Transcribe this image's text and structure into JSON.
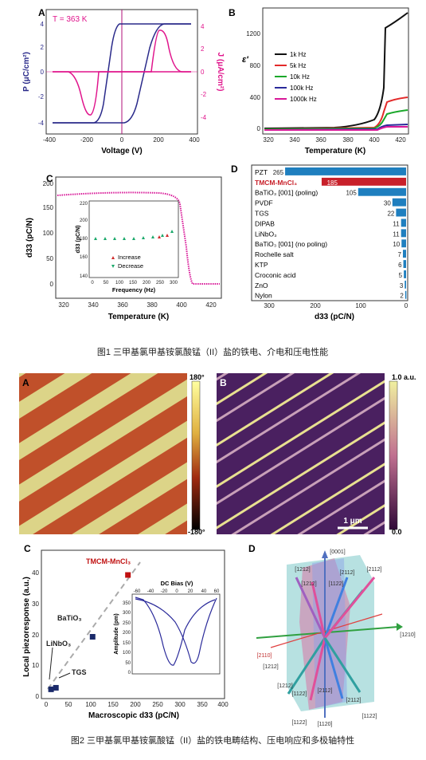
{
  "fig1": {
    "caption": "图1   三甲基氯甲基铵氯酸锰（II）盐的铁电、介电和压电性能",
    "A": {
      "label": "A",
      "annotation": "T = 363 K",
      "xlabel": "Voltage (V)",
      "ylabel_left": "P (μC/cm²)",
      "ylabel_right": "J (μA/cm²)",
      "xticks": [
        "-400",
        "-200",
        "0",
        "200",
        "400"
      ],
      "yticks_left": [
        "-4",
        "-2",
        "0",
        "2",
        "4"
      ],
      "yticks_right": [
        "-4",
        "-2",
        "0",
        "2",
        "4"
      ],
      "colors": {
        "P": "#2a2a8a",
        "J": "#e0148c"
      }
    },
    "B": {
      "label": "B",
      "xlabel": "Temperature (K)",
      "ylabel": "ε'",
      "xticks": [
        "320",
        "340",
        "360",
        "380",
        "400",
        "420"
      ],
      "yticks": [
        "0",
        "400",
        "800",
        "1200"
      ],
      "legend": [
        {
          "name": "1k Hz",
          "color": "#111111"
        },
        {
          "name": "5k Hz",
          "color": "#e32a2a"
        },
        {
          "name": "10k Hz",
          "color": "#1aa82a"
        },
        {
          "name": "100k Hz",
          "color": "#2a2a9a"
        },
        {
          "name": "1000k Hz",
          "color": "#d81898"
        }
      ]
    },
    "C": {
      "label": "C",
      "xlabel": "Temperature (K)",
      "ylabel": "d33 (pC/N)",
      "xticks": [
        "320",
        "340",
        "360",
        "380",
        "400",
        "420"
      ],
      "yticks": [
        "0",
        "50",
        "100",
        "150",
        "200"
      ],
      "inset": {
        "xlabel": "Frequency (Hz)",
        "ylabel": "d33 (pC/N)",
        "xticks": [
          "0",
          "50",
          "100",
          "150",
          "200",
          "250",
          "300"
        ],
        "yticks": [
          "140",
          "160",
          "180",
          "200",
          "220"
        ],
        "legend_increase": "Increase",
        "legend_decrease": "Decrease"
      }
    },
    "D": {
      "label": "D",
      "xlabel": "d33 (pC/N)",
      "xticks": [
        "300",
        "200",
        "100",
        "0"
      ],
      "bars": [
        {
          "name": "PZT",
          "value": 265,
          "value_label": "265"
        },
        {
          "name": "TMCM-MnCl₃",
          "value": 185,
          "value_label": "185"
        },
        {
          "name": "BaTiO₃ [001] (poling)",
          "value": 105,
          "value_label": "105"
        },
        {
          "name": "PVDF",
          "value": 30,
          "value_label": "30"
        },
        {
          "name": "TGS",
          "value": 22,
          "value_label": "22"
        },
        {
          "name": "DIPAB",
          "value": 11,
          "value_label": "11"
        },
        {
          "name": "LiNbO₃",
          "value": 11,
          "value_label": "11"
        },
        {
          "name": "BaTiO₃ [001] (no poling)",
          "value": 10,
          "value_label": "10"
        },
        {
          "name": "Rochelle salt",
          "value": 7,
          "value_label": "7"
        },
        {
          "name": "KTP",
          "value": 6,
          "value_label": "6"
        },
        {
          "name": "Croconic acid",
          "value": 5,
          "value_label": "5"
        },
        {
          "name": "ZnO",
          "value": 3,
          "value_label": "3"
        },
        {
          "name": "Nylon",
          "value": 2,
          "value_label": "2"
        }
      ],
      "colors": {
        "bar": "#1f7fbf",
        "highlight": "#c8202a"
      }
    }
  },
  "fig2": {
    "caption": "图2   三甲基氯甲基铵氯酸锰（II）盐的铁电畴结构、压电响应和多极轴特性",
    "A": {
      "label": "A",
      "cbar_top": "180°",
      "cbar_bottom": "-180°"
    },
    "B": {
      "label": "B",
      "cbar_top": "1.0 a.u.",
      "cbar_bottom": "0.0",
      "scalebar": "1 μm"
    },
    "C": {
      "label": "C",
      "xlabel": "Macroscopic d33 (pC/N)",
      "ylabel": "Local piezoresponse (a.u.)",
      "xticks": [
        "0",
        "50",
        "100",
        "150",
        "200",
        "250",
        "300",
        "350",
        "400"
      ],
      "yticks": [
        "0",
        "10",
        "20",
        "30",
        "40"
      ],
      "points": [
        {
          "name": "TMCM-MnCl₃",
          "x": 185,
          "y": 40
        },
        {
          "name": "BaTiO₃",
          "x": 105,
          "y": 20
        },
        {
          "name": "LiNbO₃",
          "x": 11,
          "y": 3
        },
        {
          "name": "TGS",
          "x": 22,
          "y": 3.5
        }
      ],
      "inset": {
        "xlabel": "DC Bias (V)",
        "ylabel": "Amplitude (pm)",
        "xticks": [
          "-60",
          "-40",
          "-20",
          "0",
          "20",
          "40",
          "60"
        ],
        "yticks": [
          "0",
          "50",
          "100",
          "150",
          "200",
          "250",
          "300",
          "350"
        ]
      }
    },
    "D": {
      "label": "D",
      "axes": [
        "[0001]",
        "[1210]",
        "[2110]",
        "[1120]"
      ],
      "vectors": [
        "[1212]",
        "[1212]",
        "[2112]",
        "[1122]",
        "[2112]",
        "[1212]",
        "[1212]",
        "[1122]",
        "[2112]",
        "[2112]",
        "[1122]",
        "[1122]"
      ]
    }
  },
  "chart_data": [
    {
      "type": "line",
      "title": "",
      "xlabel": "Voltage (V)",
      "ylabel": "P (μC/cm²)",
      "xlim": [
        -420,
        420
      ],
      "ylim": [
        -4.4,
        4.4
      ],
      "series": [
        {
          "name": "P",
          "x": [
            -400,
            -260,
            -220,
            -200,
            -170,
            -140,
            -100,
            0,
            200,
            400
          ],
          "y": [
            -4,
            -4,
            -3.6,
            -1.5,
            2,
            3.9,
            4,
            4,
            4,
            4
          ]
        },
        {
          "name": "J",
          "x": [
            -400,
            -300,
            -250,
            -220,
            -200,
            -170,
            -120,
            0,
            120,
            160,
            190,
            220,
            260,
            400
          ],
          "y": [
            0,
            0,
            -1,
            -3,
            -3.5,
            -2,
            0,
            0,
            0,
            2,
            3.6,
            3.5,
            0,
            0
          ]
        }
      ]
    },
    {
      "type": "line",
      "title": "",
      "xlabel": "Temperature (K)",
      "ylabel": "ε'",
      "xlim": [
        313,
        422
      ],
      "ylim": [
        -50,
        1550
      ],
      "series": [
        {
          "name": "1k Hz",
          "x": [
            315,
            360,
            390,
            400,
            404,
            407,
            420
          ],
          "y": [
            10,
            15,
            60,
            200,
            600,
            1280,
            1480
          ]
        },
        {
          "name": "5k Hz",
          "x": [
            315,
            390,
            404,
            407,
            420
          ],
          "y": [
            5,
            20,
            80,
            340,
            420
          ]
        },
        {
          "name": "10k Hz",
          "x": [
            315,
            390,
            404,
            407,
            420
          ],
          "y": [
            5,
            15,
            60,
            180,
            250
          ]
        },
        {
          "name": "100k Hz",
          "x": [
            315,
            400,
            406,
            420
          ],
          "y": [
            3,
            10,
            60,
            80
          ]
        },
        {
          "name": "1000k Hz",
          "x": [
            315,
            400,
            406,
            420
          ],
          "y": [
            2,
            8,
            40,
            50
          ]
        }
      ]
    },
    {
      "type": "scatter",
      "title": "",
      "xlabel": "Temperature (K)",
      "ylabel": "d33 (pC/N)",
      "xlim": [
        313,
        422
      ],
      "ylim": [
        0,
        230
      ],
      "series": [
        {
          "name": "d33",
          "x": [
            315,
            330,
            350,
            370,
            385,
            392,
            397,
            400,
            402,
            405,
            410,
            420
          ],
          "y": [
            182,
            185,
            188,
            188,
            185,
            175,
            150,
            90,
            30,
            3,
            0,
            0
          ]
        }
      ]
    },
    {
      "type": "bar",
      "title": "",
      "xlabel": "d33 (pC/N)",
      "ylabel": "",
      "categories": [
        "PZT",
        "TMCM-MnCl₃",
        "BaTiO₃ [001] (poling)",
        "PVDF",
        "TGS",
        "DIPAB",
        "LiNbO₃",
        "BaTiO₃ [001] (no poling)",
        "Rochelle salt",
        "KTP",
        "Croconic acid",
        "ZnO",
        "Nylon"
      ],
      "values": [
        265,
        185,
        105,
        30,
        22,
        11,
        11,
        10,
        7,
        6,
        5,
        3,
        2
      ],
      "xlim": [
        0,
        340
      ]
    },
    {
      "type": "scatter",
      "title": "",
      "xlabel": "Macroscopic d33 (pC/N)",
      "ylabel": "Local piezoresponse (a.u.)",
      "xlim": [
        0,
        400
      ],
      "ylim": [
        0,
        45
      ],
      "series": [
        {
          "name": "materials",
          "x": [
            185,
            105,
            11,
            22
          ],
          "y": [
            40,
            20,
            3,
            3.5
          ]
        }
      ]
    }
  ]
}
